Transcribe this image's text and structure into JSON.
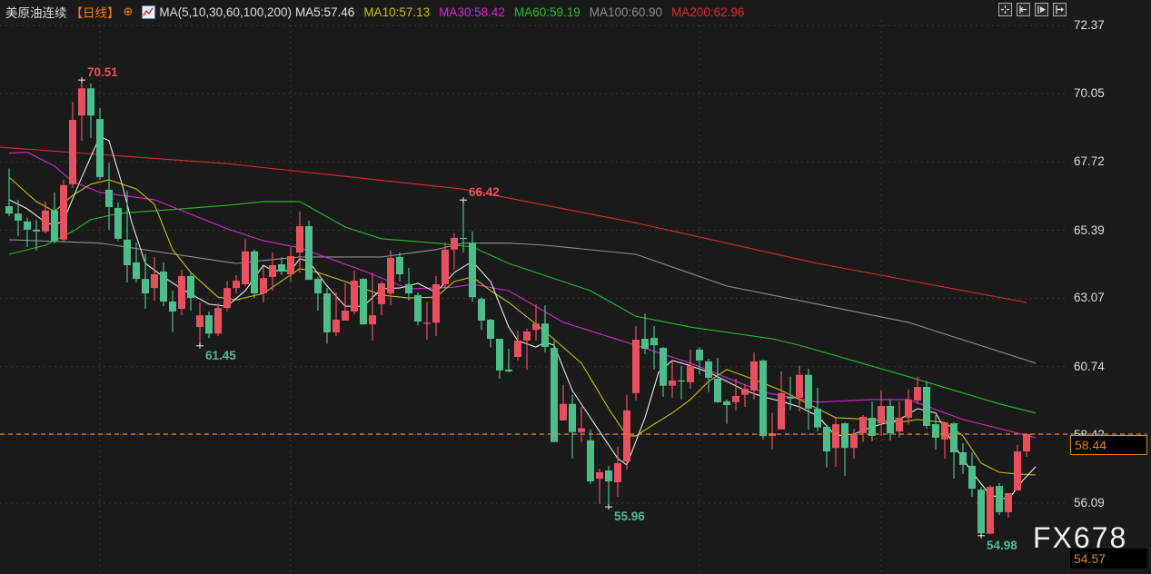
{
  "header": {
    "title": "美原油连续",
    "period": "【日线】",
    "period_icon": "crosshair-circle-icon",
    "indicator_icon": "line-chart-icon",
    "indicator": "MA(5,10,30,60,100,200)",
    "ma5": "MA5:57.46",
    "ma10": "MA10:57.13",
    "ma30": "MA30:58.42",
    "ma60": "MA60:59.19",
    "ma100": "MA100:60.90",
    "ma200": "MA200:62.96"
  },
  "toolbar": {
    "buttons": [
      "crosshair-icon",
      "jump-start-icon",
      "play-icon",
      "jump-end-icon"
    ]
  },
  "colors": {
    "background": "#1b1b1b",
    "up": "#e8505e",
    "down": "#4dbd8a",
    "ma5": "#e6e6e6",
    "ma10": "#c8c000",
    "ma30": "#d822d8",
    "ma60": "#1fbf1f",
    "ma100": "#8c8c8c",
    "ma200": "#e02828",
    "last_price": "#e08a1e"
  },
  "price_axis": {
    "ticks": [
      "72.37",
      "70.05",
      "67.72",
      "65.39",
      "63.07",
      "60.74",
      "58.42",
      "56.09"
    ],
    "last_price": "58.44",
    "low_readout": "54.57"
  },
  "watermark": "FX678",
  "chart_data": {
    "type": "candlestick",
    "ylim": [
      54.57,
      72.37
    ],
    "grid": true,
    "current_price_line": 58.44,
    "candles": [
      [
        66.21,
        67.5,
        65.87,
        65.96
      ],
      [
        65.96,
        66.43,
        65.19,
        65.72
      ],
      [
        65.69,
        65.81,
        64.82,
        65.41
      ],
      [
        65.41,
        65.75,
        64.7,
        65.35
      ],
      [
        65.35,
        66.37,
        65.28,
        66.06
      ],
      [
        66.06,
        66.68,
        64.94,
        65.03
      ],
      [
        65.07,
        67.11,
        64.98,
        66.93
      ],
      [
        66.96,
        69.77,
        66.83,
        69.15
      ],
      [
        69.3,
        70.51,
        68.44,
        70.23
      ],
      [
        70.23,
        70.39,
        68.53,
        69.3
      ],
      [
        69.18,
        69.55,
        67.11,
        67.2
      ],
      [
        66.77,
        67.69,
        65.41,
        66.18
      ],
      [
        66.15,
        66.34,
        65.03,
        65.1
      ],
      [
        65.07,
        66.74,
        63.61,
        64.2
      ],
      [
        64.29,
        64.97,
        63.61,
        63.73
      ],
      [
        63.73,
        64.57,
        62.71,
        63.24
      ],
      [
        63.42,
        64.48,
        62.99,
        63.89
      ],
      [
        63.98,
        64.29,
        62.8,
        62.96
      ],
      [
        62.96,
        63.33,
        61.92,
        62.62
      ],
      [
        62.71,
        64.04,
        62.49,
        63.83
      ],
      [
        63.83,
        63.95,
        62.65,
        63.08
      ],
      [
        62.09,
        62.93,
        61.45,
        62.49
      ],
      [
        62.49,
        62.62,
        61.71,
        61.87
      ],
      [
        61.87,
        62.9,
        61.78,
        62.74
      ],
      [
        62.74,
        63.67,
        62.62,
        63.42
      ],
      [
        63.42,
        63.86,
        63.24,
        63.67
      ],
      [
        63.55,
        65.1,
        63.49,
        64.67
      ],
      [
        64.67,
        64.73,
        63.08,
        63.24
      ],
      [
        63.24,
        64.17,
        62.93,
        63.76
      ],
      [
        63.8,
        64.63,
        63.33,
        64.2
      ],
      [
        64.23,
        64.48,
        63.86,
        63.98
      ],
      [
        63.89,
        64.82,
        63.64,
        64.51
      ],
      [
        64.63,
        66.03,
        63.95,
        65.53
      ],
      [
        65.53,
        65.72,
        63.7,
        63.7
      ],
      [
        63.73,
        63.8,
        62.65,
        63.24
      ],
      [
        63.24,
        63.42,
        61.52,
        61.91
      ],
      [
        61.91,
        63.27,
        61.78,
        62.34
      ],
      [
        62.31,
        63.58,
        62.31,
        62.65
      ],
      [
        62.62,
        64.01,
        62.52,
        63.67
      ],
      [
        63.73,
        63.76,
        62.18,
        62.18
      ],
      [
        62.18,
        63.95,
        61.63,
        62.49
      ],
      [
        62.87,
        63.64,
        62.49,
        63.58
      ],
      [
        63.24,
        64.7,
        62.83,
        64.45
      ],
      [
        64.48,
        64.63,
        63.64,
        63.89
      ],
      [
        63.55,
        64.11,
        62.99,
        63.24
      ],
      [
        63.18,
        63.27,
        62.15,
        62.28
      ],
      [
        62.21,
        62.93,
        61.66,
        62.24
      ],
      [
        62.24,
        63.83,
        61.78,
        63.55
      ],
      [
        63.55,
        64.97,
        63.39,
        64.73
      ],
      [
        64.73,
        65.28,
        64.04,
        65.13
      ],
      [
        65.13,
        66.42,
        64.63,
        65.1
      ],
      [
        64.97,
        65.35,
        62.96,
        63.11
      ],
      [
        63.05,
        63.11,
        61.99,
        62.31
      ],
      [
        62.34,
        62.37,
        61.39,
        61.69
      ],
      [
        61.69,
        61.69,
        60.33,
        60.61
      ],
      [
        60.64,
        61.35,
        60.55,
        60.58
      ],
      [
        61.07,
        61.97,
        60.95,
        61.63
      ],
      [
        61.63,
        62.04,
        60.64,
        61.94
      ],
      [
        61.99,
        62.87,
        61.63,
        62.21
      ],
      [
        62.21,
        62.83,
        61.23,
        61.41
      ],
      [
        61.38,
        61.63,
        58.17,
        58.17
      ],
      [
        58.91,
        60.12,
        58.91,
        59.47
      ],
      [
        59.47,
        59.78,
        57.61,
        58.51
      ],
      [
        58.51,
        59.37,
        58.17,
        58.64
      ],
      [
        58.23,
        58.61,
        56.74,
        56.83
      ],
      [
        56.92,
        57.26,
        56.06,
        57.14
      ],
      [
        57.2,
        57.36,
        55.96,
        56.83
      ],
      [
        56.8,
        58.01,
        56.3,
        57.45
      ],
      [
        57.51,
        59.78,
        57.23,
        59.25
      ],
      [
        59.84,
        62.12,
        59.59,
        61.66
      ],
      [
        61.69,
        62.55,
        61.16,
        61.35
      ],
      [
        61.72,
        62.12,
        60.64,
        61.47
      ],
      [
        61.38,
        61.41,
        59.71,
        60.09
      ],
      [
        60.09,
        60.95,
        59.68,
        60.27
      ],
      [
        60.27,
        60.77,
        59.62,
        60.24
      ],
      [
        60.21,
        61.32,
        59.99,
        60.77
      ],
      [
        61.32,
        61.41,
        60.49,
        60.95
      ],
      [
        60.92,
        61.01,
        59.87,
        60.36
      ],
      [
        60.33,
        61.04,
        59.5,
        59.53
      ],
      [
        59.56,
        59.62,
        58.79,
        59.43
      ],
      [
        59.53,
        60.33,
        59.25,
        59.74
      ],
      [
        59.78,
        60.15,
        59.37,
        59.99
      ],
      [
        59.93,
        61.23,
        59.62,
        60.92
      ],
      [
        60.95,
        60.98,
        58.26,
        58.38
      ],
      [
        58.38,
        59.16,
        57.92,
        58.47
      ],
      [
        58.6,
        60.58,
        58.6,
        59.84
      ],
      [
        59.71,
        60.4,
        59.25,
        59.65
      ],
      [
        59.68,
        60.77,
        59.22,
        60.46
      ],
      [
        60.46,
        60.67,
        58.6,
        59.31
      ],
      [
        59.31,
        60.02,
        58.54,
        58.67
      ],
      [
        58.69,
        58.76,
        57.3,
        57.85
      ],
      [
        57.97,
        59.0,
        57.33,
        58.78
      ],
      [
        58.81,
        58.84,
        57.02,
        57.97
      ],
      [
        57.97,
        58.63,
        57.61,
        58.44
      ],
      [
        58.47,
        59.09,
        58.17,
        59.03
      ],
      [
        59.0,
        59.56,
        58.2,
        58.38
      ],
      [
        58.81,
        59.93,
        58.38,
        59.4
      ],
      [
        59.4,
        59.62,
        58.23,
        58.47
      ],
      [
        58.53,
        59.56,
        58.32,
        59.0
      ],
      [
        59.0,
        59.96,
        58.76,
        59.62
      ],
      [
        59.59,
        60.4,
        59.47,
        60.05
      ],
      [
        60.05,
        60.24,
        58.63,
        58.72
      ],
      [
        58.78,
        59.09,
        57.92,
        58.32
      ],
      [
        58.26,
        58.84,
        57.61,
        58.84
      ],
      [
        58.81,
        58.84,
        56.92,
        57.82
      ],
      [
        57.82,
        58.13,
        57.08,
        57.39
      ],
      [
        57.36,
        57.82,
        56.3,
        56.58
      ],
      [
        56.55,
        56.64,
        54.98,
        55.06
      ],
      [
        55.05,
        56.7,
        55.02,
        56.64
      ],
      [
        56.67,
        56.77,
        55.68,
        55.78
      ],
      [
        55.78,
        56.43,
        55.59,
        56.43
      ],
      [
        56.52,
        58.07,
        56.52,
        57.85
      ],
      [
        57.85,
        58.47,
        57.67,
        58.44
      ]
    ],
    "candle_fields": [
      "open",
      "high",
      "low",
      "close"
    ],
    "moving_averages": {
      "ma200": {
        "bars": [
          0,
          25,
          51,
          70,
          90,
          113
        ],
        "values": [
          68.22,
          67.66,
          66.79,
          65.64,
          64.26,
          62.93
        ]
      },
      "ma100": {
        "bars": [
          1,
          11,
          26,
          29,
          33,
          42,
          48,
          51,
          56,
          60,
          70,
          80,
          90,
          100,
          114
        ],
        "values": [
          65.07,
          64.95,
          64.26,
          64.36,
          64.48,
          64.48,
          64.73,
          64.95,
          64.95,
          64.88,
          64.57,
          63.49,
          62.87,
          62.25,
          60.86
        ]
      },
      "ma60": {
        "bars": [
          1,
          5,
          8,
          10,
          13,
          16,
          20,
          25,
          29,
          33,
          38,
          42,
          48,
          52,
          56,
          65,
          70,
          76,
          85,
          88,
          100,
          110,
          114
        ],
        "values": [
          64.57,
          64.88,
          65.35,
          65.75,
          65.96,
          66.03,
          66.12,
          66.24,
          66.37,
          66.37,
          65.5,
          65.1,
          64.95,
          64.82,
          64.26,
          63.33,
          62.46,
          62.09,
          61.69,
          61.47,
          60.4,
          59.47,
          59.16
        ]
      },
      "ma30": {
        "bars": [
          1,
          3,
          6,
          8,
          11,
          17,
          20,
          25,
          29,
          33,
          40,
          45,
          50,
          52,
          56,
          62,
          70,
          76,
          84,
          90,
          96,
          100,
          106,
          114
        ],
        "values": [
          68.02,
          68.05,
          67.58,
          67.05,
          66.68,
          66.43,
          66.06,
          65.44,
          65.03,
          64.79,
          64.01,
          63.39,
          63.45,
          63.55,
          63.33,
          62.25,
          61.47,
          60.86,
          59.87,
          59.53,
          59.62,
          59.62,
          58.94,
          58.32
        ]
      },
      "ma10": {
        "bars": [
          1,
          4,
          6,
          8,
          10,
          12,
          15,
          17,
          19,
          21,
          24,
          26,
          29,
          33,
          35,
          38,
          42,
          45,
          48,
          50,
          52,
          54,
          56,
          60,
          64,
          67,
          69,
          70,
          72,
          74,
          76,
          78,
          80,
          83,
          86,
          88,
          92,
          96,
          99,
          101,
          104,
          106,
          108,
          110,
          112,
          114
        ],
        "values": [
          67.2,
          66.37,
          66.03,
          66.58,
          66.96,
          67.11,
          66.8,
          66.27,
          64.73,
          63.95,
          63.11,
          63.02,
          63.24,
          64.08,
          63.95,
          63.64,
          63.18,
          63.08,
          63.11,
          63.64,
          63.8,
          63.33,
          62.93,
          61.94,
          60.86,
          59.31,
          58.38,
          58.38,
          58.78,
          59.16,
          59.62,
          60.24,
          60.64,
          60.3,
          59.93,
          59.62,
          59.0,
          58.94,
          58.84,
          58.94,
          58.84,
          58.38,
          57.45,
          57.14,
          57.08,
          57.05
        ]
      },
      "ma5": {
        "bars": [
          1,
          3,
          5,
          6,
          7,
          9,
          11,
          12,
          13.5,
          14.5,
          16,
          18,
          20,
          23,
          25,
          27,
          29,
          30,
          32,
          33,
          34,
          36,
          38,
          40,
          42,
          44,
          46,
          48,
          50,
          52,
          54,
          56,
          57,
          59,
          60,
          61,
          63,
          66,
          68,
          69,
          71,
          72.5,
          74,
          76,
          78,
          80,
          82,
          84,
          86,
          88,
          90,
          92,
          94,
          96,
          99,
          101,
          103,
          105,
          107,
          109,
          111,
          112.5,
          114
        ],
        "values": [
          66.43,
          66.12,
          65.66,
          65.56,
          65.72,
          67.2,
          68.59,
          68.44,
          66.89,
          65.66,
          64.26,
          63.8,
          63.39,
          62.87,
          62.8,
          63.33,
          64.2,
          64.01,
          64.01,
          64.42,
          64.33,
          63.49,
          62.8,
          62.8,
          63.39,
          63.42,
          63.58,
          63.27,
          63.95,
          64.33,
          63.64,
          62.09,
          61.63,
          61.41,
          61.57,
          61.47,
          59.93,
          58.53,
          57.61,
          57.39,
          59.0,
          60.55,
          60.95,
          60.77,
          60.55,
          60.24,
          59.93,
          59.71,
          59.56,
          59.37,
          59.06,
          58.38,
          58.44,
          58.69,
          58.94,
          59.31,
          59.16,
          58.07,
          57.14,
          56.36,
          56.21,
          56.83,
          57.33
        ]
      }
    },
    "annotations": [
      {
        "text": "70.51",
        "bar": 9,
        "price": 70.51,
        "kind": "high"
      },
      {
        "text": "66.42",
        "bar": 51,
        "price": 66.42,
        "kind": "high"
      },
      {
        "text": "61.45",
        "bar": 22,
        "price": 61.45,
        "kind": "low"
      },
      {
        "text": "55.96",
        "bar": 67,
        "price": 55.96,
        "kind": "low"
      },
      {
        "text": "54.98",
        "bar": 108,
        "price": 54.98,
        "kind": "low"
      }
    ]
  }
}
